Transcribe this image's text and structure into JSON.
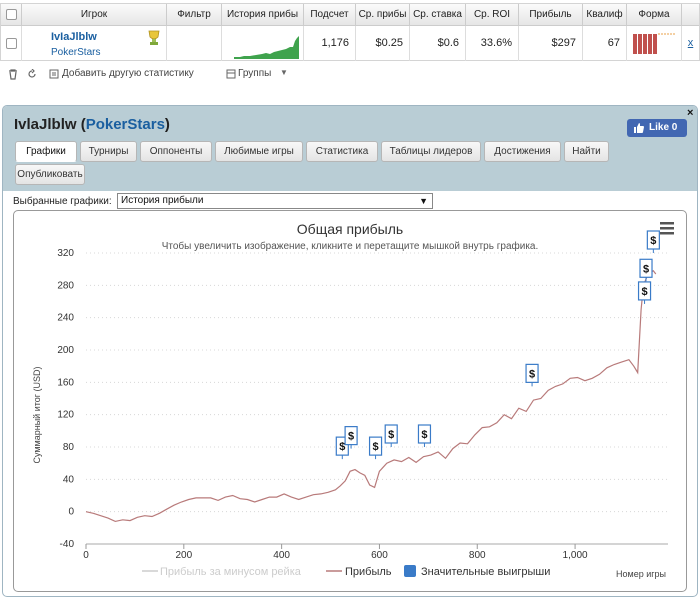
{
  "table": {
    "headers": [
      "Игрок",
      "Фильтр",
      "История прибы",
      "Подсчет",
      "Ср. прибы",
      "Ср. ставка",
      "Ср. ROI",
      "Прибыль",
      "Квалиф",
      "Форма"
    ],
    "row": {
      "player_name": "IvIaJlblw",
      "player_site": "PokerStars",
      "count": "1,176",
      "avg_profit": "$0.25",
      "avg_stake": "$0.6",
      "avg_roi": "33.6%",
      "profit": "$297",
      "qualif": "67",
      "remove_label": "x"
    }
  },
  "toolbar": {
    "add_stats_label": "Добавить другую статистику",
    "groups_label": "Группы"
  },
  "panel": {
    "title_name": "IvlaJlblw",
    "title_site": "PokerStars",
    "like_label": "Like 0",
    "close_label": "×",
    "tabs": [
      "Графики",
      "Турниры",
      "Оппоненты",
      "Любимые игры",
      "Статистика",
      "Таблицы лидеров",
      "Достижения",
      "Найти",
      "Опубликовать"
    ],
    "active_tab": "Графики",
    "chart_select_label": "Выбранные графики:",
    "chart_select_value": "История прибыли"
  },
  "colors": {
    "profit_line": "#b87a7a",
    "rake_line": "#cccccc",
    "big_win": "#3a7bc8",
    "sparkline": "#3fa34d",
    "form_bar": "#c0504d"
  },
  "chart_data": {
    "type": "line",
    "title": "Общая прибыль",
    "subtitle": "Чтобы увеличить изображение, кликните и перетащите мышкой внутрь графика.",
    "xlabel": "Номер игры",
    "ylabel": "Суммарный итог (USD)",
    "xlim": [
      0,
      1190
    ],
    "ylim": [
      -40,
      320
    ],
    "xticks": [
      0,
      200,
      400,
      600,
      800,
      1000
    ],
    "xtick_labels": [
      "0",
      "200",
      "400",
      "600",
      "800",
      "1,000"
    ],
    "yticks": [
      -40,
      0,
      40,
      80,
      120,
      160,
      200,
      240,
      280,
      320
    ],
    "legend": [
      "Прибыль за минусом рейка",
      "Прибыль",
      "Значительные выигрыши"
    ],
    "legend_position": "bottom",
    "grid": "horizontal-dotted",
    "series": [
      {
        "name": "Прибыль",
        "x": [
          0,
          15,
          30,
          45,
          60,
          75,
          90,
          105,
          120,
          135,
          150,
          165,
          180,
          195,
          210,
          225,
          240,
          255,
          270,
          285,
          300,
          315,
          330,
          345,
          360,
          375,
          390,
          405,
          420,
          435,
          450,
          465,
          480,
          495,
          510,
          520,
          530,
          540,
          550,
          560,
          570,
          580,
          590,
          600,
          615,
          630,
          645,
          660,
          675,
          690,
          705,
          720,
          735,
          750,
          765,
          780,
          795,
          810,
          825,
          840,
          855,
          870,
          885,
          900,
          915,
          930,
          945,
          960,
          975,
          990,
          1005,
          1020,
          1035,
          1050,
          1065,
          1080,
          1095,
          1110,
          1120,
          1128,
          1135,
          1140,
          1150,
          1160,
          1165
        ],
        "y": [
          0,
          -2,
          -5,
          -8,
          -12,
          -10,
          -11,
          -7,
          -5,
          -6,
          -2,
          3,
          8,
          12,
          15,
          17,
          17,
          17,
          14,
          18,
          20,
          16,
          15,
          12,
          15,
          18,
          18,
          22,
          18,
          15,
          18,
          21,
          22,
          24,
          27,
          32,
          38,
          50,
          52,
          48,
          45,
          33,
          30,
          50,
          60,
          64,
          62,
          67,
          61,
          68,
          70,
          74,
          66,
          78,
          85,
          84,
          95,
          104,
          105,
          110,
          120,
          115,
          128,
          124,
          138,
          140,
          150,
          155,
          158,
          165,
          166,
          162,
          165,
          170,
          178,
          182,
          185,
          188,
          180,
          172,
          250,
          280,
          295,
          298,
          294
        ]
      }
    ],
    "big_wins": [
      {
        "x": 522,
        "y": 65
      },
      {
        "x": 540,
        "y": 78
      },
      {
        "x": 590,
        "y": 65
      },
      {
        "x": 622,
        "y": 80
      },
      {
        "x": 690,
        "y": 80
      },
      {
        "x": 910,
        "y": 155
      },
      {
        "x": 1140,
        "y": 257
      },
      {
        "x": 1143,
        "y": 285
      },
      {
        "x": 1158,
        "y": 320
      }
    ]
  }
}
